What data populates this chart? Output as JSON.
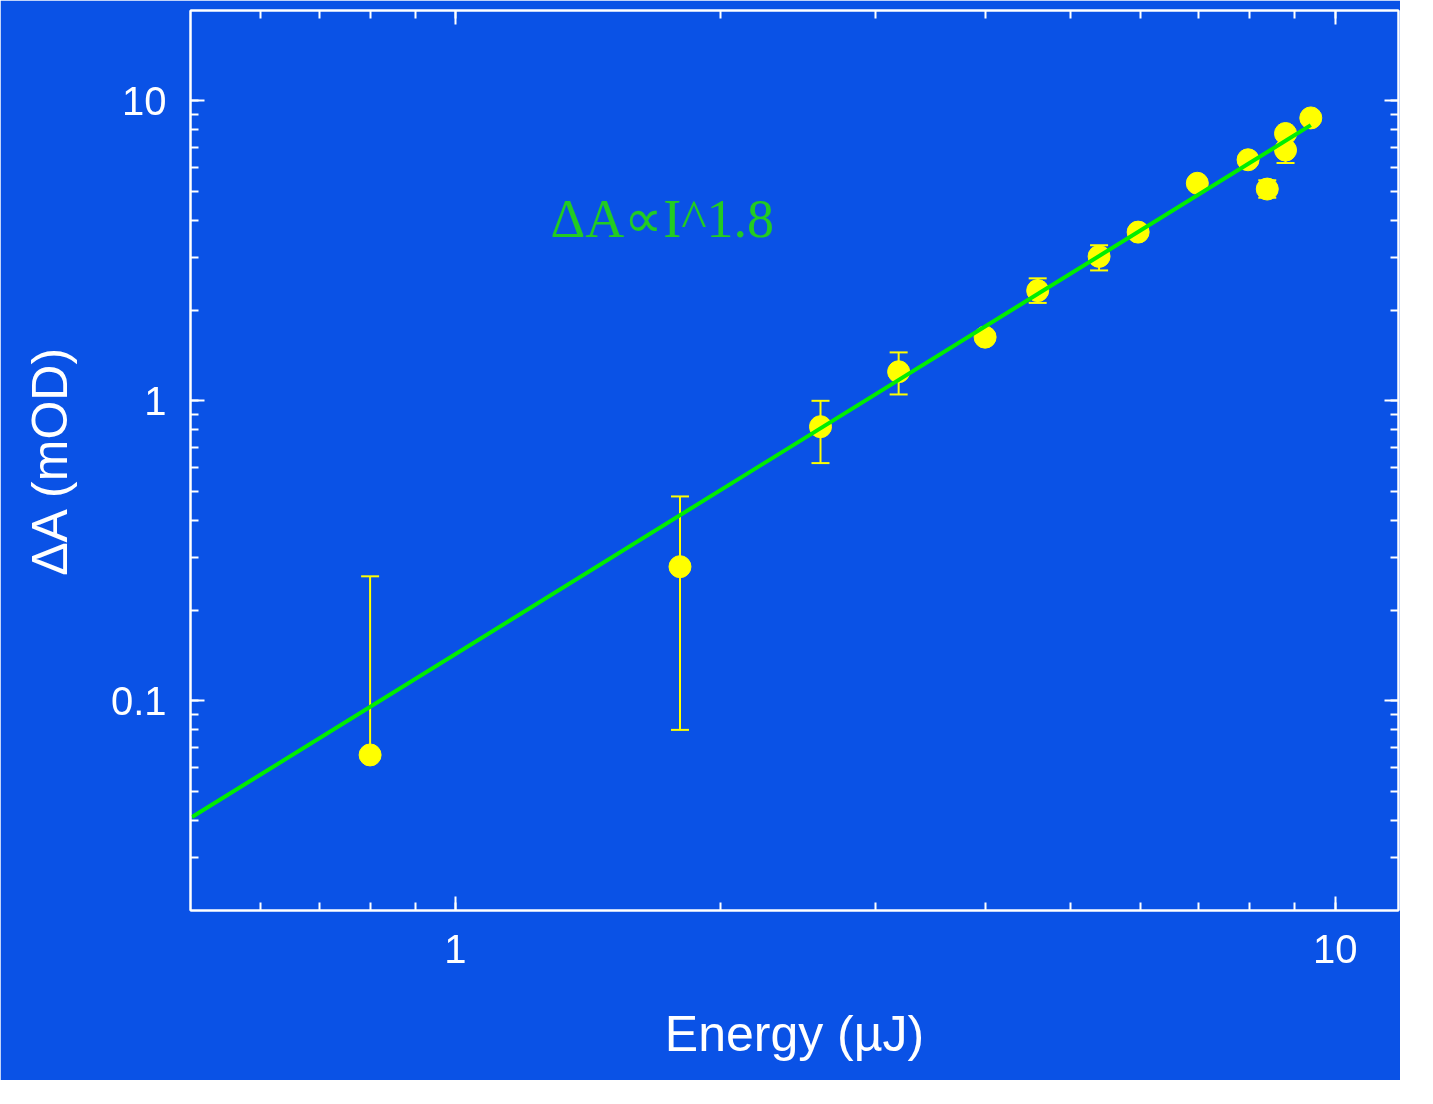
{
  "chart_data": {
    "type": "scatter",
    "xlabel": "Energy (µJ)",
    "ylabel": "ΔA (mOD)",
    "log": "xy",
    "grid": false,
    "marker": "circle",
    "xlim": [
      0.5,
      11.8
    ],
    "ylim": [
      0.02,
      20
    ],
    "xticks": [
      1,
      10
    ],
    "yticks": [
      0.1,
      1,
      10
    ],
    "annotations": [
      "ΔA∝I^1.8"
    ],
    "series": [
      {
        "color": "#ffff00",
        "x": [
          0.8,
          1.8,
          2.6,
          3.19,
          4.0,
          4.59,
          5.39,
          5.97,
          6.97,
          7.96,
          8.37,
          8.78,
          8.78,
          9.38
        ],
        "values": [
          0.066,
          0.28,
          0.82,
          1.25,
          1.63,
          2.33,
          3.03,
          3.65,
          5.31,
          6.36,
          5.08,
          7.78,
          6.85,
          8.77
        ],
        "errors": [
          [
            0.066,
            0.26
          ],
          [
            0.08,
            0.48
          ],
          [
            0.62,
            1.0
          ],
          [
            1.05,
            1.45
          ],
          null,
          [
            2.12,
            2.56
          ],
          [
            2.72,
            3.3
          ],
          null,
          null,
          null,
          [
            4.75,
            5.43
          ],
          null,
          [
            6.2,
            7.6
          ],
          null
        ]
      },
      {
        "type": "line",
        "marker": "none",
        "color": "#00ee00",
        "x": [
          0.502,
          9.38
        ],
        "values": [
          0.041,
          8.3
        ]
      }
    ]
  }
}
